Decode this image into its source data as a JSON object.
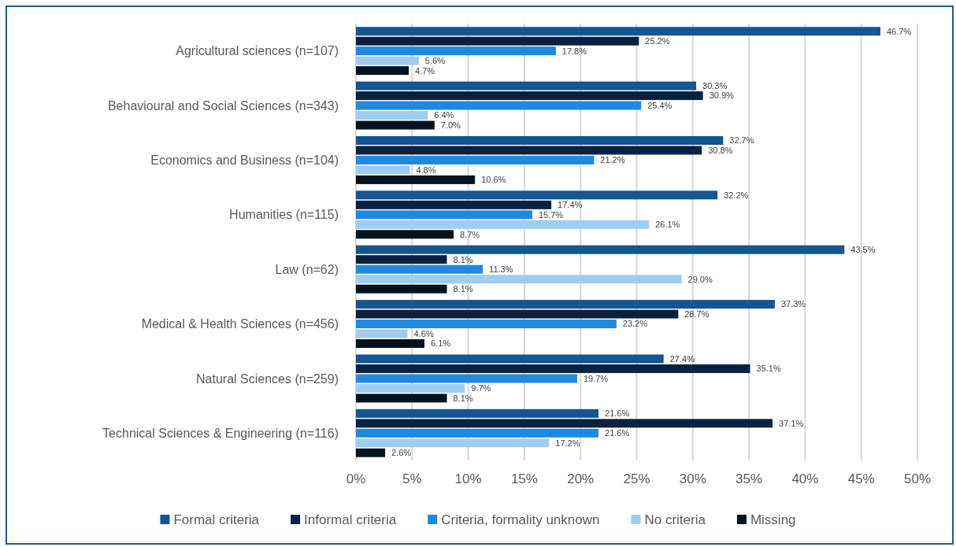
{
  "chart_data": {
    "type": "bar",
    "orientation": "horizontal",
    "categories": [
      "Agricultural sciences (n=107)",
      "Behavioural and Social Sciences (n=343)",
      "Economics and Business (n=104)",
      "Humanities (n=115)",
      "Law (n=62)",
      "Medical & Health Sciences (n=456)",
      "Natural Sciences (n=259)",
      "Technical Sciences & Engineering (n=116)"
    ],
    "series": [
      {
        "name": "Formal criteria",
        "color": "#145592",
        "values": [
          46.7,
          30.3,
          32.7,
          32.2,
          43.5,
          37.3,
          27.4,
          21.6
        ],
        "value_labels": [
          "46.7%",
          "30.3%",
          "32.7%",
          "32.2%",
          "43.5%",
          "37.3%",
          "27.4%",
          "21.6%"
        ]
      },
      {
        "name": "Informal criteria",
        "color": "#0a2240",
        "values": [
          25.2,
          30.9,
          30.8,
          17.4,
          8.1,
          28.7,
          35.1,
          37.1
        ],
        "value_labels": [
          "25.2%",
          "30.9%",
          "30.8%",
          "17.4%",
          "8.1%",
          "28.7%",
          "35.1%",
          "37.1%"
        ]
      },
      {
        "name": "Criteria, formality unknown",
        "color": "#1f88e0",
        "values": [
          17.8,
          25.4,
          21.2,
          15.7,
          11.3,
          23.2,
          19.7,
          21.6
        ],
        "value_labels": [
          "17.8%",
          "25.4%",
          "21.2%",
          "15.7%",
          "11.3%",
          "23.2%",
          "19.7%",
          "21.6%"
        ]
      },
      {
        "name": "No criteria",
        "color": "#9fcdf2",
        "values": [
          5.6,
          6.4,
          4.8,
          26.1,
          29.0,
          4.6,
          9.7,
          17.2
        ],
        "value_labels": [
          "5.6%",
          "6.4%",
          "4.8%",
          "26.1%",
          "29.0%",
          "4.6%",
          "9.7%",
          "17.2%"
        ]
      },
      {
        "name": "Missing",
        "color": "#06121e",
        "values": [
          4.7,
          7.0,
          10.6,
          8.7,
          8.1,
          6.1,
          8.1,
          2.6
        ],
        "value_labels": [
          "4.7%",
          "7.0%",
          "10.6%",
          "8.7%",
          "8.1%",
          "6.1%",
          "8.1%",
          "2.6%"
        ]
      }
    ],
    "xlim": [
      0,
      50
    ],
    "xticks": [
      {
        "value": 0,
        "label": "0%"
      },
      {
        "value": 5,
        "label": "5%"
      },
      {
        "value": 10,
        "label": "10%"
      },
      {
        "value": 15,
        "label": "15%"
      },
      {
        "value": 20,
        "label": "20%"
      },
      {
        "value": 25,
        "label": "25%"
      },
      {
        "value": 30,
        "label": "30%"
      },
      {
        "value": 35,
        "label": "35%"
      },
      {
        "value": 40,
        "label": "40%"
      },
      {
        "value": 45,
        "label": "45%"
      },
      {
        "value": 50,
        "label": "50%"
      }
    ],
    "grid": "x",
    "legend": "bottom"
  }
}
